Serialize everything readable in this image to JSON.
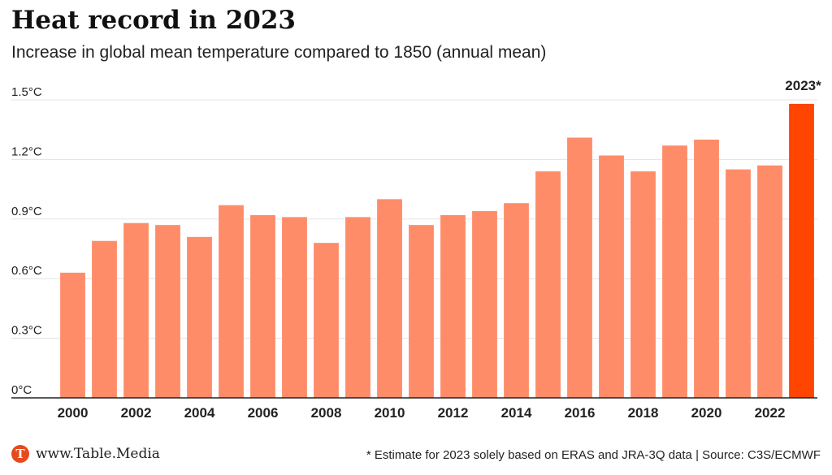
{
  "header": {
    "title": "Heat record in 2023",
    "subtitle": "Increase in global mean temperature compared to 1850 (annual mean)"
  },
  "footer": {
    "logo_letter": "T",
    "site": "www.Table.Media",
    "note": "* Estimate for 2023 solely based on ERAS and JRA-3Q data | Source: C3S/ECMWF"
  },
  "colors": {
    "bar": "#ff8c69",
    "highlight": "#ff4500",
    "grid": "#e3e3e3",
    "axis": "#222222",
    "text": "#222222"
  },
  "chart_data": {
    "type": "bar",
    "title": "Heat record in 2023",
    "subtitle": "Increase in global mean temperature compared to 1850 (annual mean)",
    "categories": [
      "2000",
      "2001",
      "2002",
      "2003",
      "2004",
      "2005",
      "2006",
      "2007",
      "2008",
      "2009",
      "2010",
      "2011",
      "2012",
      "2013",
      "2014",
      "2015",
      "2016",
      "2017",
      "2018",
      "2019",
      "2020",
      "2021",
      "2022",
      "2023"
    ],
    "x_tick_labels": [
      "2000",
      "2002",
      "2004",
      "2006",
      "2008",
      "2010",
      "2012",
      "2014",
      "2016",
      "2018",
      "2020",
      "2022"
    ],
    "values": [
      0.63,
      0.79,
      0.88,
      0.87,
      0.81,
      0.97,
      0.92,
      0.91,
      0.78,
      0.91,
      1.0,
      0.87,
      0.92,
      0.94,
      0.98,
      1.14,
      1.31,
      1.22,
      1.14,
      1.27,
      1.3,
      1.15,
      1.17,
      1.48
    ],
    "highlight_index": 23,
    "highlight_label": "2023*",
    "yticks": [
      "0°C",
      "0.3°C",
      "0.6°C",
      "0.9°C",
      "1.2°C",
      "1.5°C"
    ],
    "ylim": [
      0,
      1.5
    ],
    "unit": "°C",
    "grid": true,
    "xlabel": "",
    "ylabel": ""
  }
}
